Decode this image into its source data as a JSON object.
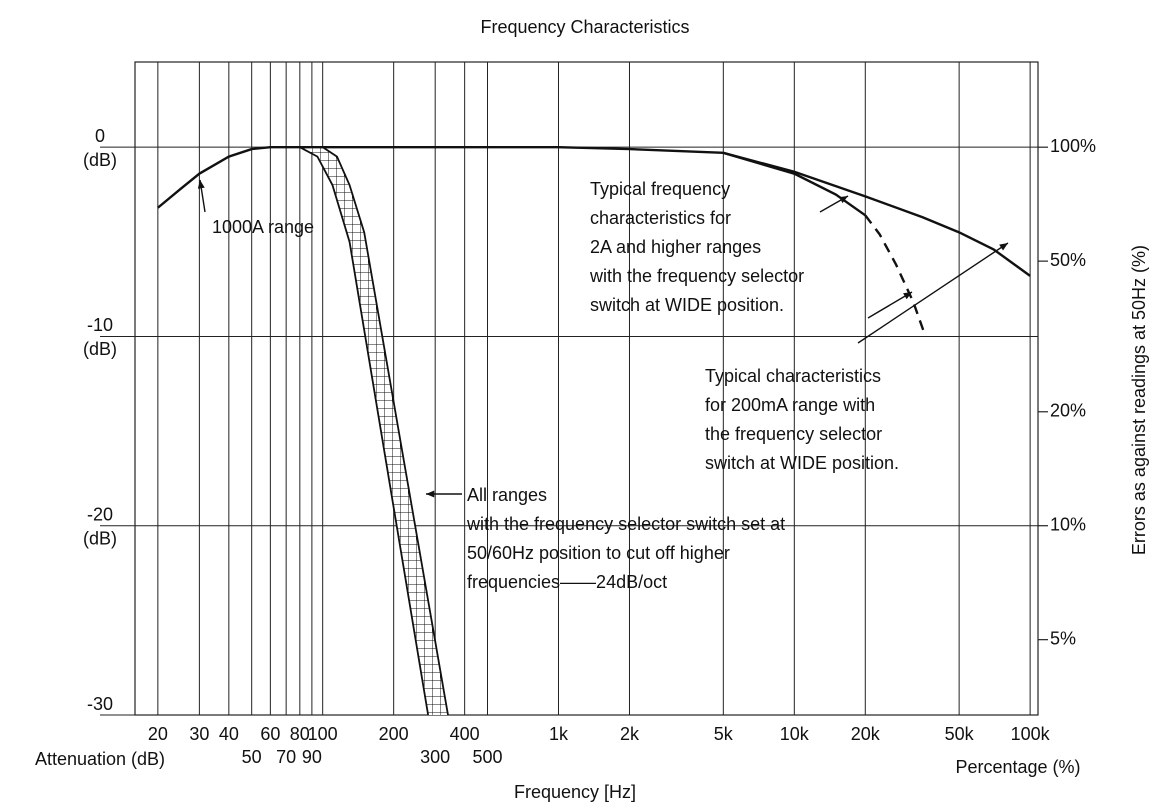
{
  "chart_data": {
    "type": "line",
    "title": "Frequency Characteristics",
    "xlabel": "Frequency [Hz]",
    "ylabel": "Attenuation (dB)",
    "y2label": "Percentage (%)",
    "y2title": "Errors as against readings at 50Hz (%)",
    "tick_unit_label": "(dB)",
    "xlog": true,
    "xlim": [
      16,
      108000
    ],
    "xticks": [
      20,
      30,
      40,
      60,
      80,
      100,
      200,
      400,
      {
        "value": 1000,
        "label": "1k"
      },
      {
        "value": 2000,
        "label": "2k"
      },
      {
        "value": 5000,
        "label": "5k"
      },
      {
        "value": 10000,
        "label": "10k"
      },
      {
        "value": 20000,
        "label": "20k"
      },
      {
        "value": 50000,
        "label": "50k"
      },
      {
        "value": 100000,
        "label": "100k"
      }
    ],
    "xticks_lower": [
      50,
      70,
      90,
      300,
      500
    ],
    "ylim": [
      -30,
      4.5
    ],
    "yticks": [
      0,
      -10,
      -20,
      -30
    ],
    "y2log": true,
    "y2lim": [
      3.162,
      167.9
    ],
    "y2ticks": [
      {
        "value": 100,
        "label": "100%"
      },
      {
        "value": 50,
        "label": "50%"
      },
      {
        "value": 20,
        "label": "20%"
      },
      {
        "value": 10,
        "label": "10%"
      },
      {
        "value": 5,
        "label": "5%"
      }
    ],
    "grid": true,
    "color": "#111111",
    "curves": [
      {
        "x": [
          20,
          25,
          30,
          40,
          50,
          60,
          100,
          1000
        ],
        "values": [
          -3.2,
          -2.2,
          -1.4,
          -0.5,
          -0.1,
          0,
          0,
          0
        ],
        "dash": false
      },
      {
        "x": [
          1000,
          2000,
          5000,
          10000,
          20000,
          35000,
          50000,
          70000,
          100000
        ],
        "values": [
          0,
          -0.1,
          -0.3,
          -1.3,
          -2.6,
          -3.7,
          -4.5,
          -5.4,
          -6.8
        ],
        "dash": false
      },
      {
        "x": [
          5000,
          10000,
          15000,
          20000
        ],
        "values": [
          -0.3,
          -1.4,
          -2.5,
          -3.6
        ],
        "dash": false
      },
      {
        "x": [
          20000,
          23000,
          27000,
          32000,
          36000
        ],
        "values": [
          -3.6,
          -4.6,
          -6.2,
          -8.2,
          -10
        ],
        "dash": true
      }
    ],
    "band": [
      {
        "x": [
          80,
          95,
          110,
          130,
          280
        ],
        "values": [
          0,
          -0.5,
          -2,
          -5,
          -30
        ]
      },
      {
        "x": [
          100,
          115,
          130,
          150,
          340
        ],
        "values": [
          0,
          -0.5,
          -2,
          -4.5,
          -30
        ]
      }
    ],
    "annotations": [
      {
        "text": [
          "1000A range"
        ]
      },
      {
        "text": [
          "Typical frequency",
          "characteristics for",
          "2A and higher ranges",
          "with the frequency selector",
          "switch at WIDE position."
        ]
      },
      {
        "text": [
          "Typical characteristics",
          "for 200mA range with",
          "the frequency selector",
          "switch at WIDE position."
        ]
      },
      {
        "text": [
          "All ranges",
          "with the frequency selector switch set at",
          "50/60Hz position to cut off higher",
          "frequencies——24dB/oct"
        ]
      }
    ]
  }
}
